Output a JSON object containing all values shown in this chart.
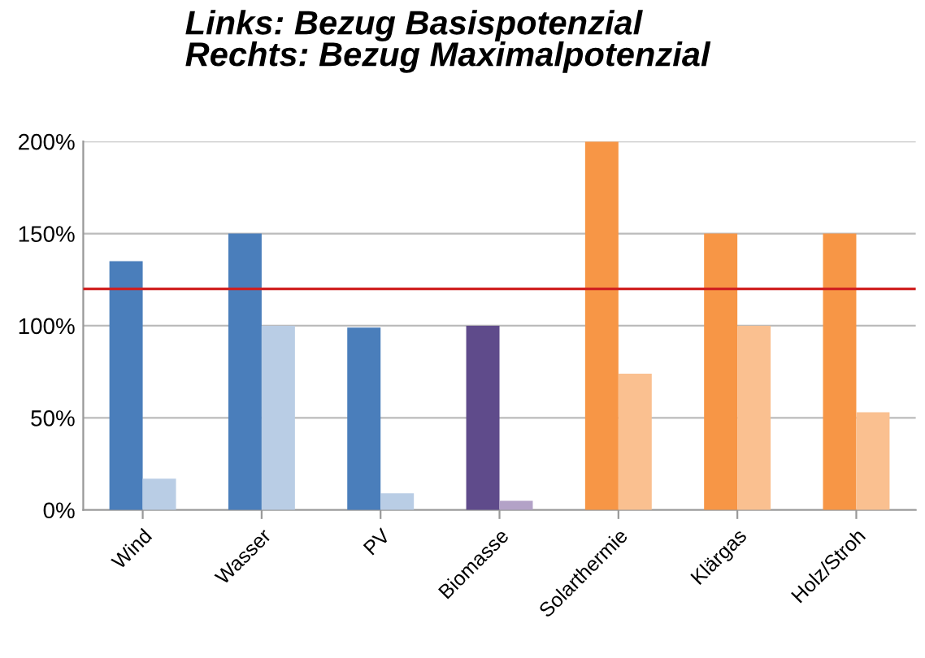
{
  "chart_data": {
    "type": "bar",
    "title": "Links: Bezug Basispotenzial\nRechts: Bezug Maximalpotenzial",
    "categories": [
      "Wind",
      "Wasser",
      "PV",
      "Biomasse",
      "Solarthermie",
      "Klärgas",
      "Holz/Stroh"
    ],
    "series": [
      {
        "colors": [
          "#4a7ebb",
          "#4a7ebb",
          "#4a7ebb",
          "#5f4b8b",
          "#f79646",
          "#f79646",
          "#f79646"
        ],
        "values": [
          135,
          150,
          99,
          100,
          200,
          150,
          150
        ]
      },
      {
        "colors": [
          "#b9cde5",
          "#b9cde5",
          "#b9cde5",
          "#b3a2c7",
          "#fac090",
          "#fac090",
          "#fac090"
        ],
        "values": [
          17,
          100,
          9,
          5,
          74,
          100,
          53
        ]
      }
    ],
    "ylim": [
      0,
      200
    ],
    "yticks": [
      {
        "value": 0,
        "label": "0%"
      },
      {
        "value": 50,
        "label": "50%"
      },
      {
        "value": 100,
        "label": "100%"
      },
      {
        "value": 150,
        "label": "150%"
      },
      {
        "value": 200,
        "label": "200%"
      }
    ],
    "grid": "y",
    "legend": false,
    "ref_lines": [
      {
        "axis": "y",
        "value": 120,
        "color": "#d02020"
      }
    ]
  }
}
